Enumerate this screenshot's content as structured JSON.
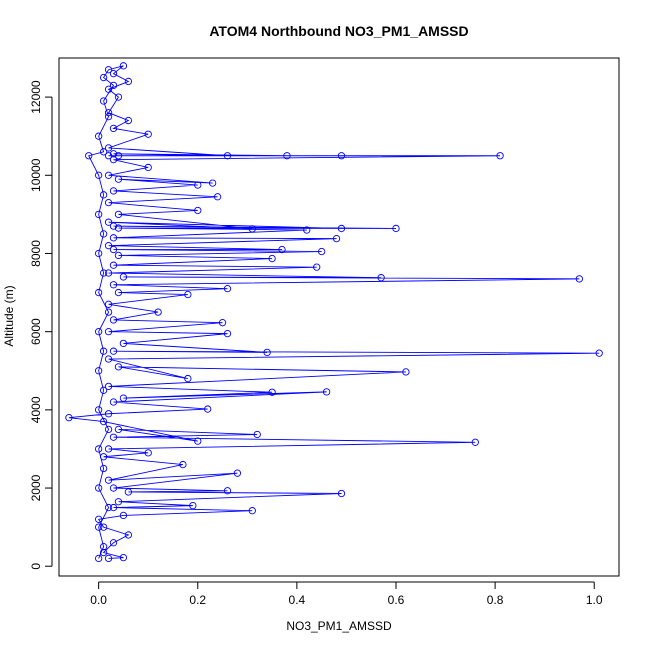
{
  "chart_data": {
    "type": "line",
    "title": "ATOM4 Northbound NO3_PM1_AMSSD",
    "xlabel": "NO3_PM1_AMSSD",
    "ylabel": "Altitude (m)",
    "xlim": [
      -0.08,
      1.05
    ],
    "ylim": [
      -250,
      13000
    ],
    "xticks": [
      0.0,
      0.2,
      0.4,
      0.6,
      0.8,
      1.0
    ],
    "xtick_labels": [
      "0.0",
      "0.2",
      "0.4",
      "0.6",
      "0.8",
      "1.0"
    ],
    "yticks": [
      0,
      2000,
      4000,
      6000,
      8000,
      10000,
      12000
    ],
    "ytick_labels": [
      "0",
      "2000",
      "4000",
      "6000",
      "8000",
      "10000",
      "12000"
    ],
    "grid": false,
    "legend": "none",
    "series": [
      {
        "color": "#0000ff",
        "marker": "open-circle",
        "points": [
          [
            0.02,
            200
          ],
          [
            0.05,
            220
          ],
          [
            0.01,
            350
          ],
          [
            0.03,
            600
          ],
          [
            0.06,
            800
          ],
          [
            0.01,
            1000
          ],
          [
            0.0,
            1200
          ],
          [
            0.05,
            1300
          ],
          [
            0.31,
            1420
          ],
          [
            0.03,
            1500
          ],
          [
            0.19,
            1550
          ],
          [
            0.04,
            1650
          ],
          [
            0.49,
            1860
          ],
          [
            0.06,
            1900
          ],
          [
            0.26,
            1930
          ],
          [
            0.03,
            2000
          ],
          [
            0.28,
            2380
          ],
          [
            0.02,
            2200
          ],
          [
            0.17,
            2600
          ],
          [
            0.01,
            2800
          ],
          [
            0.1,
            2900
          ],
          [
            0.02,
            3000
          ],
          [
            0.76,
            3170
          ],
          [
            0.03,
            3300
          ],
          [
            0.32,
            3370
          ],
          [
            0.04,
            3500
          ],
          [
            0.2,
            3200
          ],
          [
            0.01,
            3700
          ],
          [
            -0.06,
            3800
          ],
          [
            0.02,
            3900
          ],
          [
            0.22,
            4020
          ],
          [
            0.03,
            4200
          ],
          [
            0.46,
            4460
          ],
          [
            0.05,
            4300
          ],
          [
            0.35,
            4450
          ],
          [
            0.02,
            4600
          ],
          [
            0.62,
            4970
          ],
          [
            0.04,
            5100
          ],
          [
            0.18,
            4800
          ],
          [
            0.02,
            5300
          ],
          [
            1.01,
            5450
          ],
          [
            0.03,
            5500
          ],
          [
            0.34,
            5470
          ],
          [
            0.05,
            5700
          ],
          [
            0.26,
            5950
          ],
          [
            0.02,
            6000
          ],
          [
            0.25,
            6230
          ],
          [
            0.03,
            6300
          ],
          [
            0.12,
            6500
          ],
          [
            0.02,
            6700
          ],
          [
            0.18,
            6950
          ],
          [
            0.04,
            7000
          ],
          [
            0.26,
            7100
          ],
          [
            0.03,
            7200
          ],
          [
            0.97,
            7350
          ],
          [
            0.05,
            7400
          ],
          [
            0.57,
            7380
          ],
          [
            0.02,
            7500
          ],
          [
            0.44,
            7650
          ],
          [
            0.03,
            7700
          ],
          [
            0.35,
            7870
          ],
          [
            0.04,
            7950
          ],
          [
            0.45,
            8050
          ],
          [
            0.03,
            8100
          ],
          [
            0.37,
            8100
          ],
          [
            0.02,
            8200
          ],
          [
            0.48,
            8380
          ],
          [
            0.03,
            8400
          ],
          [
            0.42,
            8600
          ],
          [
            0.04,
            8650
          ],
          [
            0.6,
            8640
          ],
          [
            0.03,
            8700
          ],
          [
            0.49,
            8640
          ],
          [
            0.02,
            8800
          ],
          [
            0.31,
            8630
          ],
          [
            0.04,
            9000
          ],
          [
            0.2,
            9100
          ],
          [
            0.02,
            9300
          ],
          [
            0.24,
            9450
          ],
          [
            0.03,
            9600
          ],
          [
            0.2,
            9750
          ],
          [
            0.04,
            9900
          ],
          [
            0.23,
            9800
          ],
          [
            0.02,
            10000
          ],
          [
            0.1,
            10200
          ],
          [
            0.03,
            10400
          ],
          [
            0.81,
            10500
          ],
          [
            0.04,
            10500
          ],
          [
            0.49,
            10500
          ],
          [
            0.02,
            10500
          ],
          [
            0.38,
            10500
          ],
          [
            0.03,
            10550
          ],
          [
            0.26,
            10500
          ],
          [
            0.02,
            10700
          ],
          [
            0.1,
            11050
          ],
          [
            0.03,
            11200
          ],
          [
            0.06,
            11400
          ],
          [
            0.02,
            11600
          ],
          [
            0.04,
            12000
          ],
          [
            0.02,
            12200
          ],
          [
            0.06,
            12400
          ],
          [
            0.03,
            12600
          ],
          [
            0.05,
            12800
          ],
          [
            0.02,
            12700
          ],
          [
            0.01,
            12500
          ],
          [
            0.03,
            12300
          ],
          [
            0.01,
            11900
          ],
          [
            0.02,
            11500
          ],
          [
            0.0,
            11000
          ],
          [
            0.01,
            10600
          ],
          [
            -0.02,
            10500
          ],
          [
            0.0,
            10000
          ],
          [
            0.01,
            9500
          ],
          [
            0.0,
            9000
          ],
          [
            0.01,
            8500
          ],
          [
            0.0,
            8000
          ],
          [
            0.01,
            7500
          ],
          [
            0.0,
            7000
          ],
          [
            0.02,
            6500
          ],
          [
            0.0,
            6000
          ],
          [
            0.01,
            5500
          ],
          [
            0.0,
            5000
          ],
          [
            0.01,
            4500
          ],
          [
            0.0,
            4000
          ],
          [
            0.02,
            3500
          ],
          [
            0.0,
            3000
          ],
          [
            0.01,
            2500
          ],
          [
            0.0,
            2000
          ],
          [
            0.02,
            1500
          ],
          [
            0.0,
            1000
          ],
          [
            0.01,
            500
          ],
          [
            0.0,
            200
          ]
        ]
      }
    ]
  }
}
